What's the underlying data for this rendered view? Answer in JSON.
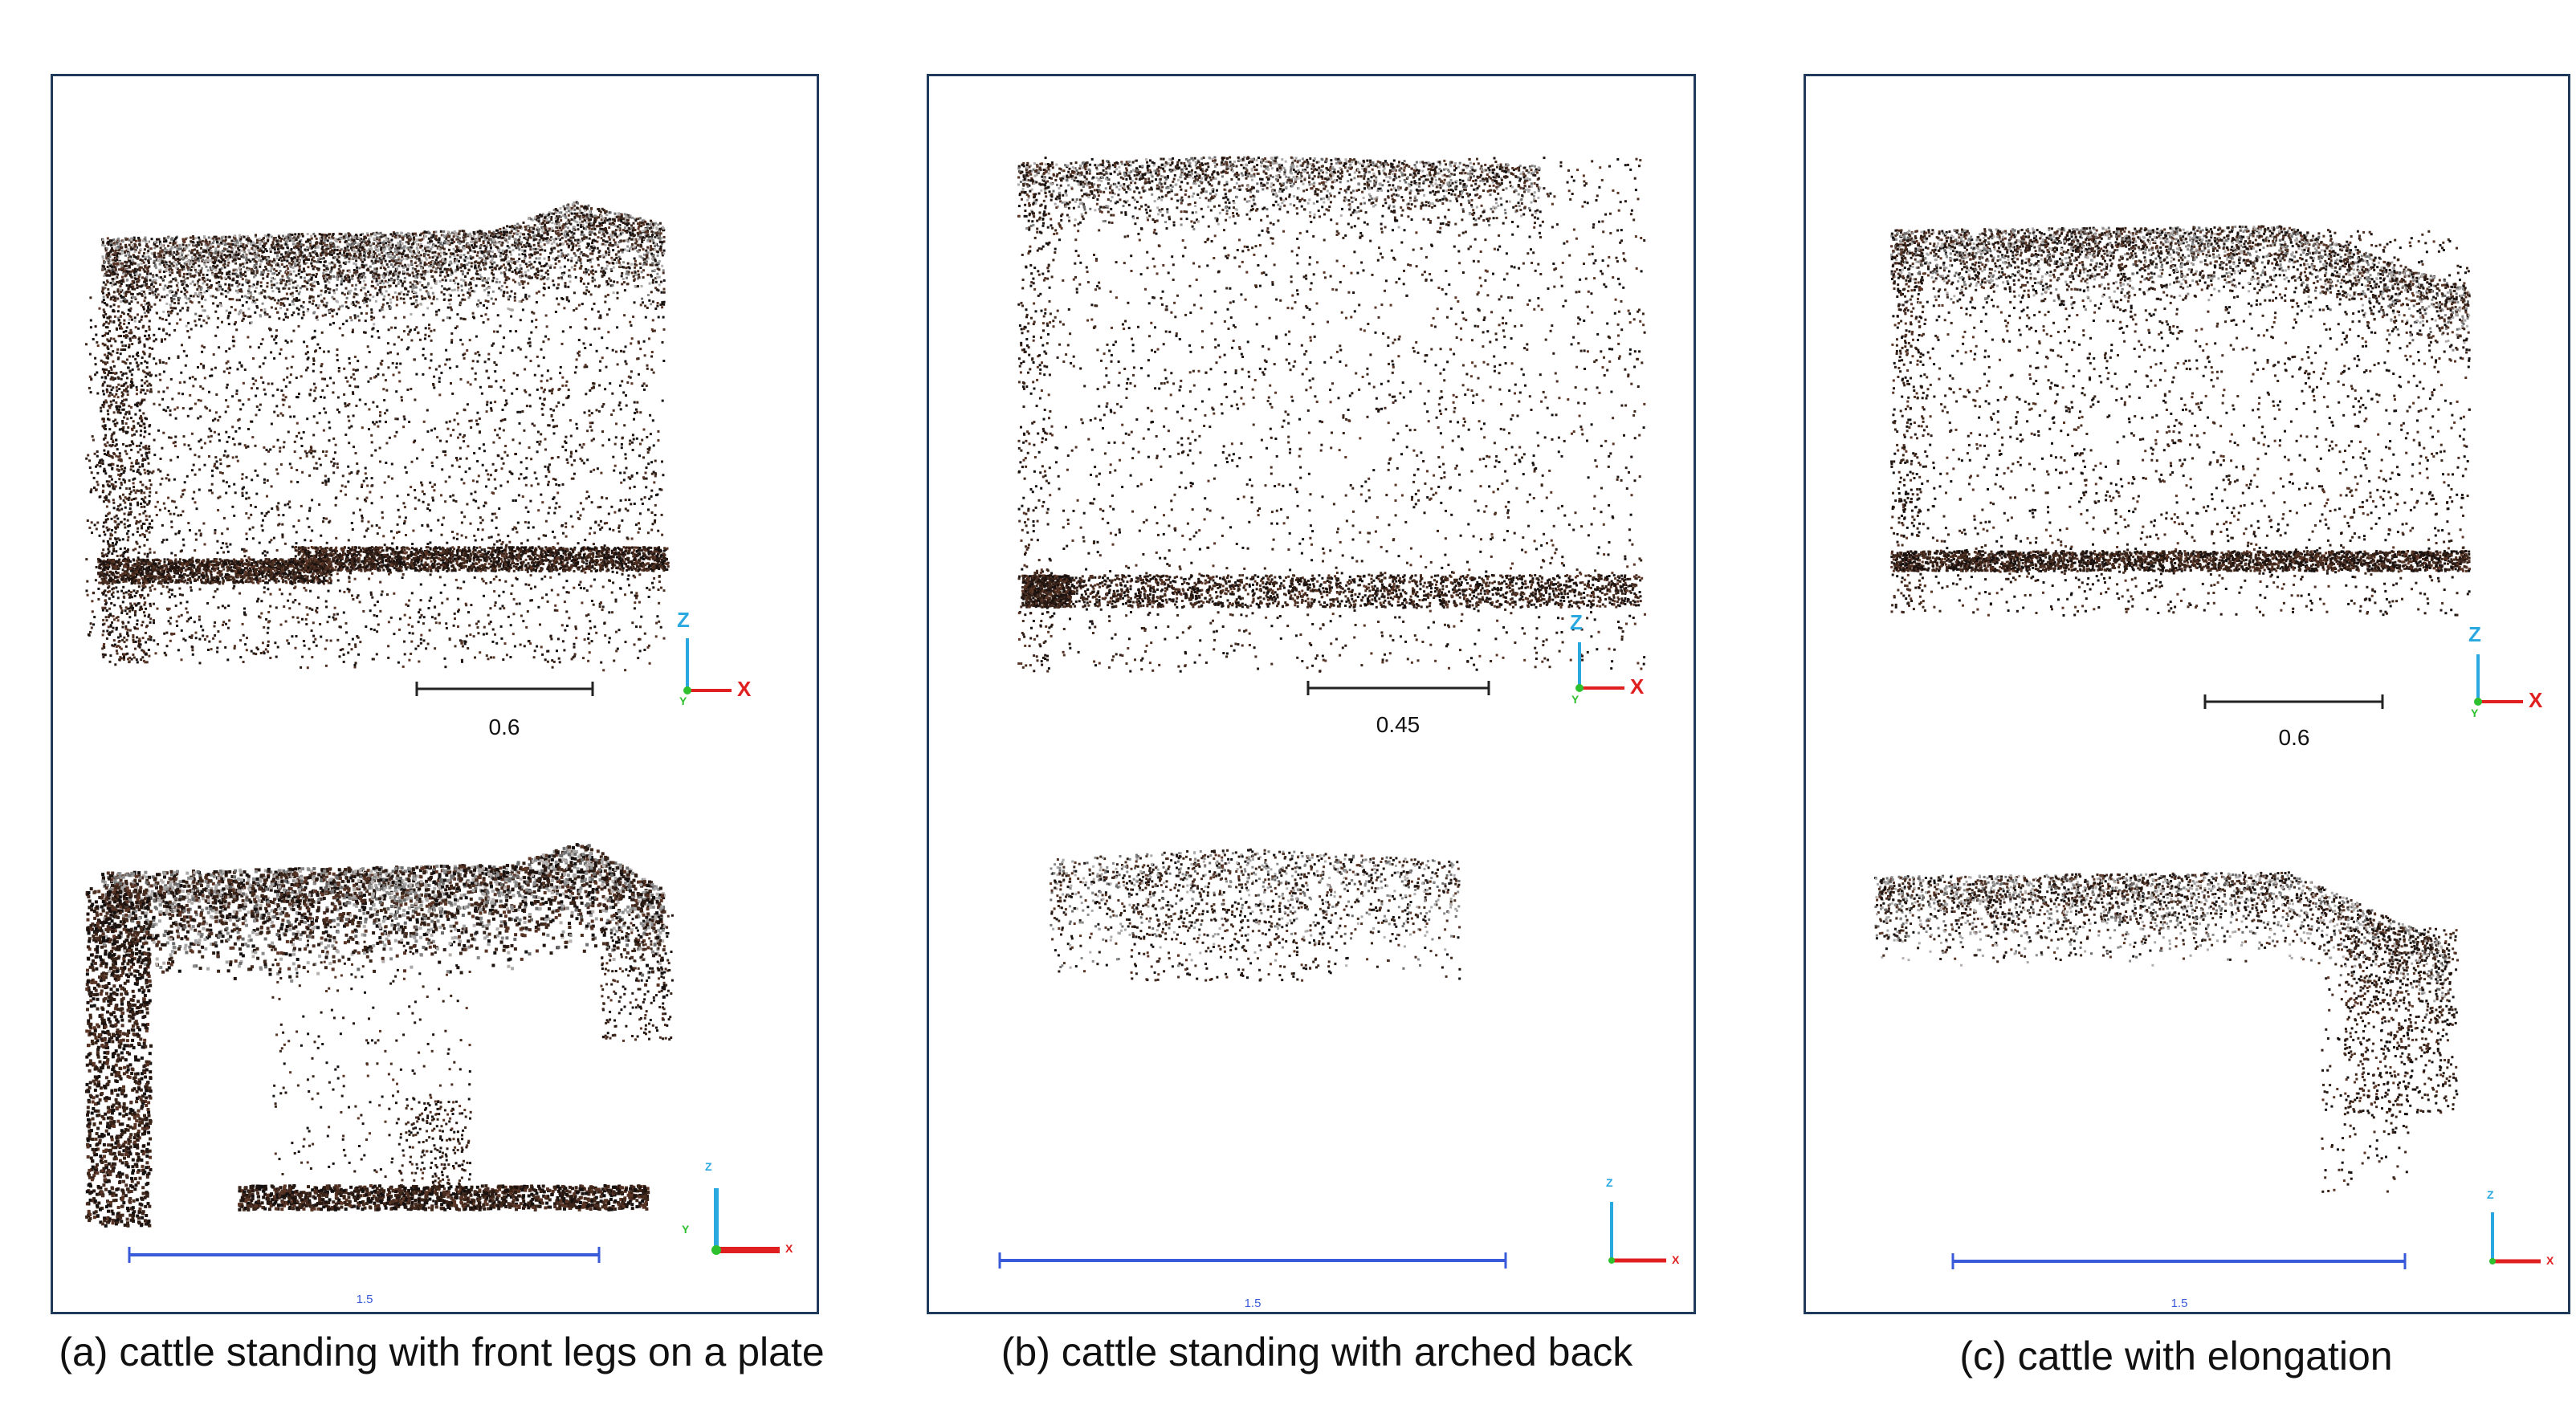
{
  "panels": [
    {
      "id": "a",
      "caption": "(a) cattle standing with front legs on a plate",
      "top_scale_label": "0.6",
      "bottom_scale_label": "1.5",
      "axis_labels": {
        "z": "Z",
        "y": "Y",
        "x": "X"
      }
    },
    {
      "id": "b",
      "caption": "(b) cattle standing with arched back",
      "top_scale_label": "0.45",
      "bottom_scale_label": "1.5",
      "axis_labels": {
        "z": "Z",
        "y": "Y",
        "x": "X"
      }
    },
    {
      "id": "c",
      "caption": "(c) cattle with elongation",
      "top_scale_label": "0.6",
      "bottom_scale_label": "1.5",
      "axis_labels": {
        "z": "Z",
        "y": "Y",
        "x": "X"
      }
    }
  ],
  "colors": {
    "panel_border": "#1f3a5a",
    "points_dark": "#2a1a14",
    "points_brown": "#5a3525",
    "points_grey": "#9a9a9a",
    "axis_z": "#2aa8e0",
    "axis_x": "#e02020",
    "axis_y": "#2ec02e",
    "scale_bar_top": "#222222",
    "scale_bar_bottom": "#3a5bd9"
  }
}
